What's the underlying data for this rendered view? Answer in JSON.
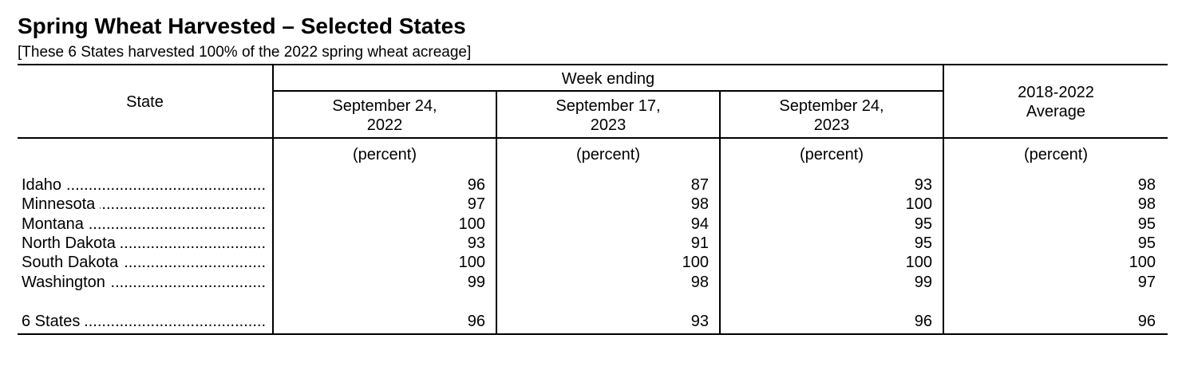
{
  "title": "Spring Wheat Harvested – Selected States",
  "subtitle": "[These 6 States harvested 100% of the 2022 spring wheat acreage]",
  "table": {
    "state_header": "State",
    "group_header": "Week ending",
    "columns": [
      {
        "line1": "September 24,",
        "line2": "2022",
        "unit": "(percent)"
      },
      {
        "line1": "September 17,",
        "line2": "2023",
        "unit": "(percent)"
      },
      {
        "line1": "September 24,",
        "line2": "2023",
        "unit": "(percent)"
      },
      {
        "line1": "2018-2022",
        "line2": "Average",
        "unit": "(percent)"
      }
    ],
    "rows": [
      {
        "state": "Idaho",
        "values": [
          "96",
          "87",
          "93",
          "98"
        ]
      },
      {
        "state": "Minnesota",
        "values": [
          "97",
          "98",
          "100",
          "98"
        ]
      },
      {
        "state": "Montana",
        "values": [
          "100",
          "94",
          "95",
          "95"
        ]
      },
      {
        "state": "North Dakota",
        "values": [
          "93",
          "91",
          "95",
          "95"
        ]
      },
      {
        "state": "South Dakota",
        "values": [
          "100",
          "100",
          "100",
          "100"
        ]
      },
      {
        "state": "Washington",
        "values": [
          "99",
          "98",
          "99",
          "97"
        ]
      }
    ],
    "total": {
      "state": "6 States",
      "values": [
        "96",
        "93",
        "96",
        "96"
      ]
    }
  }
}
